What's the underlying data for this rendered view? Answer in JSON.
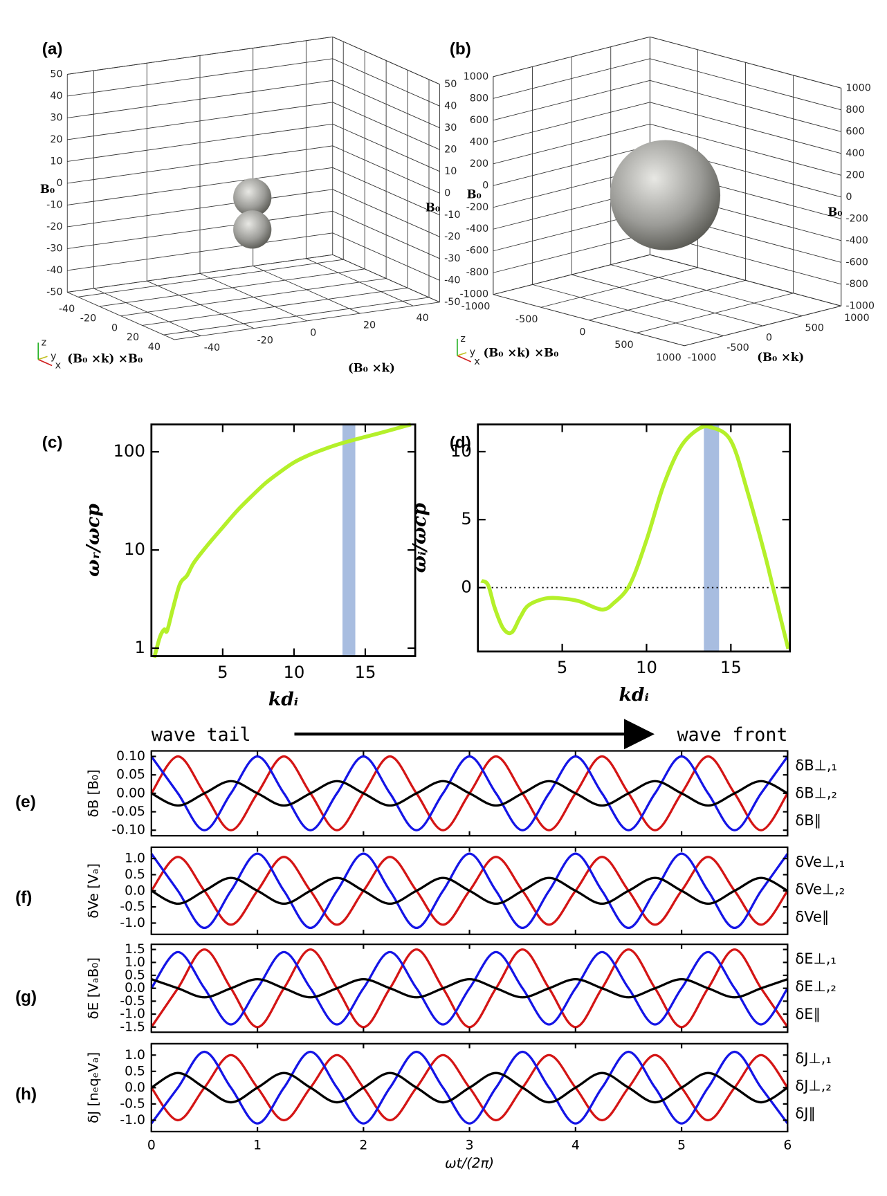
{
  "chart_data": [
    {
      "type": "surface3d",
      "label": "(a)",
      "zlabel": "B₀",
      "xlabel": "(B₀ ×k)",
      "ylabel": "(B₀ ×k) ×B₀",
      "orientation_axes": [
        "x",
        "y",
        "z"
      ],
      "xlim": [
        50,
        -50
      ],
      "ylim": [
        -50,
        50
      ],
      "zlim": [
        -50,
        50
      ],
      "xticks": [
        -40,
        -20,
        0,
        20,
        40
      ],
      "yticks": [
        -40,
        -20,
        0,
        20,
        40
      ],
      "zticks": [
        -50,
        -40,
        -30,
        -20,
        -10,
        0,
        10,
        20,
        30,
        40,
        50
      ]
    },
    {
      "type": "surface3d",
      "label": "(b)",
      "zlabel": "B₀",
      "xlabel": "(B₀ ×k) ×B₀",
      "ylabel": "(B₀ ×k)",
      "orientation_axes": [
        "x",
        "y",
        "z"
      ],
      "xlim": [
        1000,
        -1000
      ],
      "ylim": [
        -1000,
        1000
      ],
      "zlim": [
        -1000,
        1000
      ],
      "xticks": [
        -1000,
        -500,
        0,
        500,
        1000
      ],
      "yticks": [
        -1000,
        -500,
        0,
        500,
        1000
      ],
      "zticks": [
        -1000,
        -800,
        -600,
        -400,
        -200,
        0,
        200,
        400,
        600,
        800,
        1000
      ]
    },
    {
      "type": "line",
      "label": "(c)",
      "xlabel": "kdᵢ",
      "ylabel": "ωᵣ/ωcp",
      "yscale": "log",
      "color": "#b4f02a",
      "x": [
        0.2,
        0.6,
        0.9,
        1.1,
        1.5,
        2,
        2.5,
        3,
        4,
        5,
        6,
        7,
        8,
        9,
        10,
        11,
        12,
        13,
        14,
        15,
        16,
        17,
        18.2
      ],
      "values": [
        0.8,
        1.3,
        1.55,
        1.5,
        2.5,
        4.5,
        5.5,
        7.5,
        11.5,
        17,
        25,
        35,
        48,
        62,
        78,
        92,
        105,
        118,
        130,
        142,
        155,
        170,
        190
      ],
      "xlim": [
        0,
        18.5
      ],
      "ylim": [
        0.83,
        190
      ],
      "xticks": [
        5,
        10,
        15
      ],
      "yticks": [
        1,
        10,
        100
      ],
      "highlight_x": [
        13.4,
        14.3
      ],
      "highlight_color": "#a8bde0"
    },
    {
      "type": "line",
      "label": "(d)",
      "xlabel": "kdᵢ",
      "ylabel": "ωᵢ/ωcp",
      "color": "#b4f02a",
      "x": [
        0.2,
        0.6,
        1,
        1.5,
        2,
        2.5,
        3,
        4,
        5,
        6,
        7,
        7.5,
        8,
        9,
        10,
        11,
        12,
        13,
        13.8,
        15,
        16,
        17,
        17.5,
        18,
        18.4
      ],
      "values": [
        0.5,
        0.2,
        -1.5,
        -3,
        -3.3,
        -2.2,
        -1.3,
        -0.8,
        -0.8,
        -1,
        -1.5,
        -1.6,
        -1.2,
        0.2,
        3.5,
        7.5,
        10.3,
        11.6,
        11.8,
        10.8,
        7,
        2.5,
        0,
        -2.5,
        -4.5
      ],
      "xlim": [
        0,
        18.5
      ],
      "ylim": [
        -4.7,
        12
      ],
      "xticks": [
        5,
        10,
        15
      ],
      "yticks": [
        0,
        5,
        10
      ],
      "hline": 0,
      "highlight_x": [
        13.4,
        14.3
      ],
      "highlight_color": "#a8bde0"
    },
    {
      "type": "line",
      "label": "(e)",
      "ylabel": "δB [B₀]",
      "annotations": [
        "wave tail",
        "wave front"
      ],
      "x": [
        0,
        0.25,
        0.5,
        0.75,
        1,
        1.25,
        1.5,
        1.75,
        2,
        2.25,
        2.5,
        2.75,
        3,
        3.25,
        3.5,
        3.75,
        4,
        4.25,
        4.5,
        4.75,
        5,
        5.25,
        5.5,
        5.75,
        6
      ],
      "series": [
        {
          "name": "δB⊥,₁",
          "color": "#d41515",
          "values": [
            0,
            0.1,
            0,
            -0.1,
            0,
            0.1,
            0,
            -0.1,
            0,
            0.1,
            0,
            -0.1,
            0,
            0.1,
            0,
            -0.1,
            0,
            0.1,
            0,
            -0.1,
            0,
            0.1,
            0,
            -0.1,
            0
          ]
        },
        {
          "name": "δB⊥,₂",
          "color": "#1515e6",
          "values": [
            0.1,
            0,
            -0.1,
            0,
            0.1,
            0,
            -0.1,
            0,
            0.1,
            0,
            -0.1,
            0,
            0.1,
            0,
            -0.1,
            0,
            0.1,
            0,
            -0.1,
            0,
            0.1,
            0,
            -0.1,
            0,
            0.1
          ]
        },
        {
          "name": "δB∥",
          "color": "#000000",
          "values": [
            0,
            -0.033,
            0,
            0.033,
            0,
            -0.033,
            0,
            0.033,
            0,
            -0.033,
            0,
            0.033,
            0,
            -0.033,
            0,
            0.033,
            0,
            -0.033,
            0,
            0.033,
            0,
            -0.033,
            0,
            0.033,
            0
          ]
        }
      ],
      "xlim": [
        0,
        6
      ],
      "ylim": [
        -0.115,
        0.115
      ],
      "xticks": [
        0,
        1,
        2,
        3,
        4,
        5,
        6
      ],
      "yticks": [
        {
          "value": -0.1,
          "label": "-0.10"
        },
        -0.05,
        {
          "value": 0,
          "label": "0.00"
        },
        0.05,
        {
          "value": 0.1,
          "label": "0.10"
        }
      ]
    },
    {
      "type": "line",
      "label": "(f)",
      "ylabel": "δVe [Vₐ]",
      "x": [
        0,
        0.25,
        0.5,
        0.75,
        1,
        1.25,
        1.5,
        1.75,
        2,
        2.25,
        2.5,
        2.75,
        3,
        3.25,
        3.5,
        3.75,
        4,
        4.25,
        4.5,
        4.75,
        5,
        5.25,
        5.5,
        5.75,
        6
      ],
      "series": [
        {
          "name": "δVe⊥,₁",
          "color": "#d41515",
          "values": [
            0,
            1.05,
            0,
            -1.05,
            0,
            1.05,
            0,
            -1.05,
            0,
            1.05,
            0,
            -1.05,
            0,
            1.05,
            0,
            -1.05,
            0,
            1.05,
            0,
            -1.05,
            0,
            1.05,
            0,
            -1.05,
            0
          ]
        },
        {
          "name": "δVe⊥,₂",
          "color": "#1515e6",
          "values": [
            1.15,
            0,
            -1.15,
            0,
            1.15,
            0,
            -1.15,
            0,
            1.15,
            0,
            -1.15,
            0,
            1.15,
            0,
            -1.15,
            0,
            1.15,
            0,
            -1.15,
            0,
            1.15,
            0,
            -1.15,
            0,
            1.15
          ]
        },
        {
          "name": "δVe∥",
          "color": "#000000",
          "values": [
            0,
            -0.4,
            0,
            0.4,
            0,
            -0.4,
            0,
            0.4,
            0,
            -0.4,
            0,
            0.4,
            0,
            -0.4,
            0,
            0.4,
            0,
            -0.4,
            0,
            0.4,
            0,
            -0.4,
            0,
            0.4,
            0
          ]
        }
      ],
      "xlim": [
        0,
        6
      ],
      "ylim": [
        -1.35,
        1.35
      ],
      "xticks": [
        0,
        1,
        2,
        3,
        4,
        5,
        6
      ],
      "yticks": [
        {
          "value": -1,
          "label": "-1.0"
        },
        -0.5,
        {
          "value": 0,
          "label": "0.0"
        },
        0.5,
        {
          "value": 1,
          "label": "1.0"
        }
      ]
    },
    {
      "type": "line",
      "label": "(g)",
      "ylabel": "δE [VₐB₀]",
      "x": [
        0,
        0.25,
        0.5,
        0.75,
        1,
        1.25,
        1.5,
        1.75,
        2,
        2.25,
        2.5,
        2.75,
        3,
        3.25,
        3.5,
        3.75,
        4,
        4.25,
        4.5,
        4.75,
        5,
        5.25,
        5.5,
        5.75,
        6
      ],
      "series": [
        {
          "name": "δE⊥,₁",
          "color": "#d41515",
          "values": [
            -1.5,
            0,
            1.5,
            0,
            -1.5,
            0,
            1.5,
            0,
            -1.5,
            0,
            1.5,
            0,
            -1.5,
            0,
            1.5,
            0,
            -1.5,
            0,
            1.5,
            0,
            -1.5,
            0,
            1.5,
            0,
            -1.5
          ]
        },
        {
          "name": "δE⊥,₂",
          "color": "#1515e6",
          "values": [
            0,
            1.4,
            0,
            -1.4,
            0,
            1.4,
            0,
            -1.4,
            0,
            1.4,
            0,
            -1.4,
            0,
            1.4,
            0,
            -1.4,
            0,
            1.4,
            0,
            -1.4,
            0,
            1.4,
            0,
            -1.4,
            0
          ]
        },
        {
          "name": "δE∥",
          "color": "#000000",
          "values": [
            0.35,
            0,
            -0.35,
            0,
            0.35,
            0,
            -0.35,
            0,
            0.35,
            0,
            -0.35,
            0,
            0.35,
            0,
            -0.35,
            0,
            0.35,
            0,
            -0.35,
            0,
            0.35,
            0,
            -0.35,
            0,
            0.35
          ]
        }
      ],
      "xlim": [
        0,
        6
      ],
      "ylim": [
        -1.7,
        1.7
      ],
      "xticks": [
        0,
        1,
        2,
        3,
        4,
        5,
        6
      ],
      "yticks": [
        {
          "value": -1.5,
          "label": "-1.5"
        },
        {
          "value": -1,
          "label": "-1.0"
        },
        -0.5,
        {
          "value": 0,
          "label": "0.0"
        },
        0.5,
        {
          "value": 1,
          "label": "1.0"
        },
        1.5
      ]
    },
    {
      "type": "line",
      "label": "(h)",
      "ylabel": "δJ [nₑqₑVₐ]",
      "xlabel": "ωt/(2π)",
      "x": [
        0,
        0.25,
        0.5,
        0.75,
        1,
        1.25,
        1.5,
        1.75,
        2,
        2.25,
        2.5,
        2.75,
        3,
        3.25,
        3.5,
        3.75,
        4,
        4.25,
        4.5,
        4.75,
        5,
        5.25,
        5.5,
        5.75,
        6
      ],
      "series": [
        {
          "name": "δJ⊥,₁",
          "color": "#d41515",
          "values": [
            0,
            -1,
            0,
            1,
            0,
            -1,
            0,
            1,
            0,
            -1,
            0,
            1,
            0,
            -1,
            0,
            1,
            0,
            -1,
            0,
            1,
            0,
            -1,
            0,
            1,
            0
          ]
        },
        {
          "name": "δJ⊥,₂",
          "color": "#1515e6",
          "values": [
            -1.1,
            0,
            1.1,
            0,
            -1.1,
            0,
            1.1,
            0,
            -1.1,
            0,
            1.1,
            0,
            -1.1,
            0,
            1.1,
            0,
            -1.1,
            0,
            1.1,
            0,
            -1.1,
            0,
            1.1,
            0,
            -1.1
          ]
        },
        {
          "name": "δJ∥",
          "color": "#000000",
          "values": [
            0,
            0.45,
            0,
            -0.45,
            0,
            0.45,
            0,
            -0.45,
            0,
            0.45,
            0,
            -0.45,
            0,
            0.45,
            0,
            -0.45,
            0,
            0.45,
            0,
            -0.45,
            0,
            0.45,
            0,
            -0.45,
            0
          ]
        }
      ],
      "xlim": [
        0,
        6
      ],
      "ylim": [
        -1.35,
        1.35
      ],
      "xticks": [
        0,
        1,
        2,
        3,
        4,
        5,
        6
      ],
      "yticks": [
        {
          "value": -1,
          "label": "-1.0"
        },
        -0.5,
        {
          "value": 0,
          "label": "0.0"
        },
        0.5,
        {
          "value": 1,
          "label": "1.0"
        }
      ]
    }
  ]
}
